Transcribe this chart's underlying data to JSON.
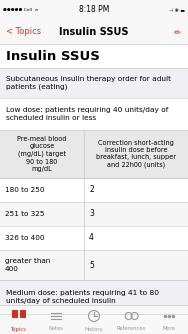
{
  "status_bar_text": "8:18 PM",
  "nav_title": "Insulin SSUS",
  "back_label": "< Topics",
  "page_title": "Insulin SSUS",
  "subtitle": "Subcutaneous insulin therapy order for adult\npatients (eating)",
  "low_dose_label": "Low dose: patients requiring 40 units/day of\nscheduled insulin or less",
  "table_header_col1": "Pre-meal blood\nglucose\n(mg/dL) target\n90 to 180\nmg/dL",
  "table_header_col2": "Correction short-acting\ninsulin dose before\nbreakfast, lunch, supper\nand 22h00 (units)",
  "table_rows": [
    [
      "180 to 250",
      "2"
    ],
    [
      "251 to 325",
      "3"
    ],
    [
      "326 to 400",
      "4"
    ],
    [
      "greater than\n400",
      "5"
    ]
  ],
  "medium_dose_label": "Medium dose: patients requiring 41 to 80\nunits/day of scheduled insulin",
  "bg_color": "#efeff4",
  "white": "#ffffff",
  "nav_bg": "#f7f7f7",
  "table_header_bg": "#e8e8e8",
  "text_color": "#000000",
  "nav_text_color": "#e03020",
  "border_color": "#c8c8c8",
  "tab_bar_bg": "#f7f7f7",
  "tab_active_color": "#d03020",
  "tab_inactive_color": "#999999",
  "tab_labels": [
    "Topics",
    "Notes",
    "History",
    "References",
    "More"
  ]
}
